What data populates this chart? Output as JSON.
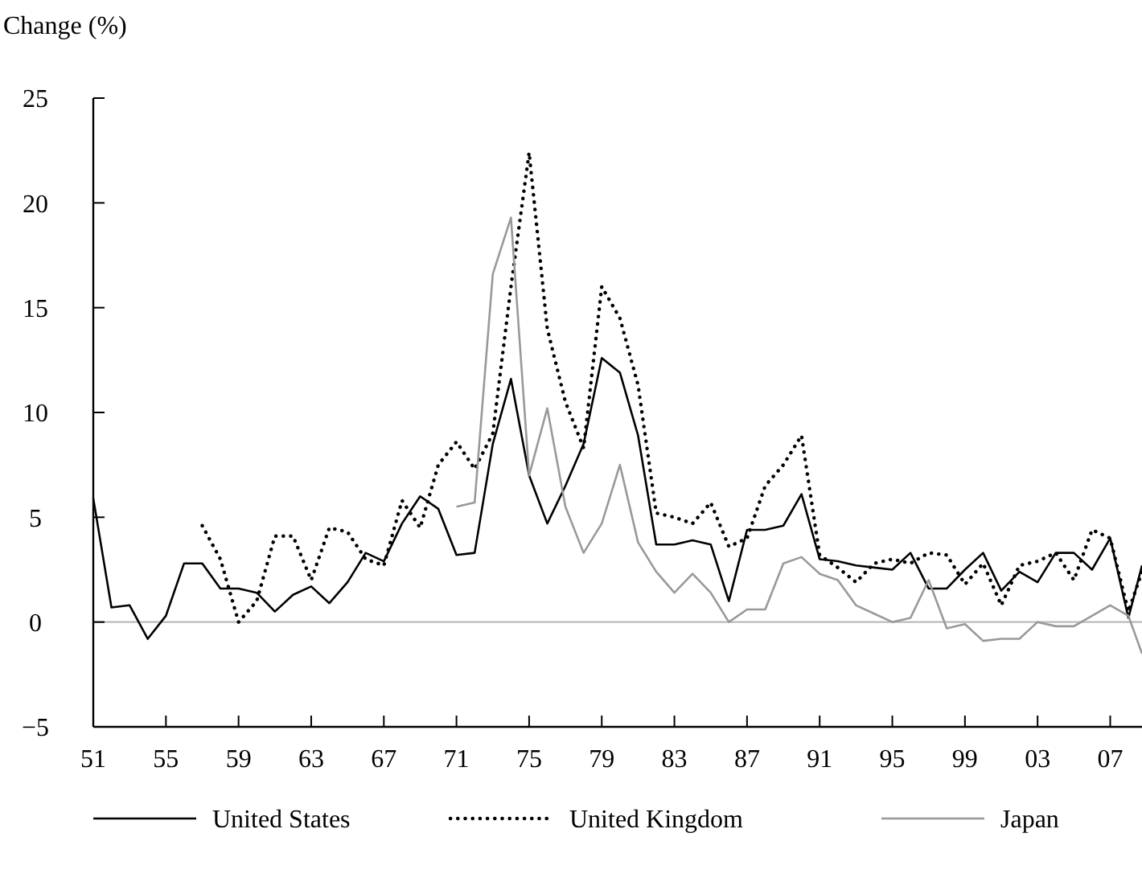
{
  "chart_data": {
    "type": "line",
    "ylabel": "Change (%)",
    "x": [
      1951,
      1952,
      1953,
      1954,
      1955,
      1956,
      1957,
      1958,
      1959,
      1960,
      1961,
      1962,
      1963,
      1964,
      1965,
      1966,
      1967,
      1968,
      1969,
      1970,
      1971,
      1972,
      1973,
      1974,
      1975,
      1976,
      1977,
      1978,
      1979,
      1980,
      1981,
      1982,
      1983,
      1984,
      1985,
      1986,
      1987,
      1988,
      1989,
      1990,
      1991,
      1992,
      1993,
      1994,
      1995,
      1996,
      1997,
      1998,
      1999,
      2000,
      2001,
      2002,
      2003,
      2004,
      2005,
      2006,
      2007,
      2008,
      2008.75
    ],
    "series": [
      {
        "name": "United States",
        "color": "#000000",
        "line_style": "solid",
        "values": [
          5.9,
          0.7,
          0.8,
          -0.8,
          0.3,
          2.8,
          2.8,
          1.6,
          1.6,
          1.4,
          0.5,
          1.3,
          1.7,
          0.9,
          1.9,
          3.3,
          2.9,
          4.7,
          6.0,
          5.4,
          3.2,
          3.3,
          8.5,
          11.6,
          7.0,
          4.7,
          6.5,
          8.5,
          12.6,
          11.9,
          8.9,
          3.7,
          3.7,
          3.9,
          3.7,
          1.0,
          4.4,
          4.4,
          4.6,
          6.1,
          3.0,
          2.9,
          2.7,
          2.6,
          2.5,
          3.3,
          1.6,
          1.6,
          2.5,
          3.3,
          1.5,
          2.4,
          1.9,
          3.3,
          3.3,
          2.5,
          4.0,
          0.2,
          2.7
        ]
      },
      {
        "name": "United Kingdom",
        "color": "#000000",
        "line_style": "dotted",
        "values": [
          null,
          null,
          null,
          null,
          null,
          null,
          4.6,
          3.0,
          0.0,
          1.0,
          4.1,
          4.1,
          2.0,
          4.5,
          4.3,
          3.0,
          2.7,
          5.8,
          4.5,
          7.5,
          8.6,
          7.3,
          9.0,
          16.0,
          22.4,
          14.0,
          10.5,
          8.3,
          16.0,
          14.5,
          11.3,
          5.2,
          5.0,
          4.7,
          5.7,
          3.6,
          4.0,
          6.5,
          7.5,
          8.9,
          3.2,
          2.6,
          1.9,
          2.8,
          3.0,
          2.8,
          3.3,
          3.2,
          1.8,
          2.8,
          0.8,
          2.7,
          2.9,
          3.3,
          2.0,
          4.4,
          4.0,
          0.5,
          2.4
        ]
      },
      {
        "name": "Japan",
        "color": "#999999",
        "line_style": "solid",
        "values": [
          null,
          null,
          null,
          null,
          null,
          null,
          null,
          null,
          null,
          null,
          null,
          null,
          null,
          null,
          null,
          null,
          null,
          null,
          null,
          null,
          5.5,
          5.7,
          16.6,
          19.3,
          7.0,
          10.2,
          5.5,
          3.3,
          4.7,
          7.5,
          3.8,
          2.4,
          1.4,
          2.3,
          1.4,
          0.0,
          0.6,
          0.6,
          2.8,
          3.1,
          2.3,
          2.0,
          0.8,
          0.4,
          0.0,
          0.2,
          2.0,
          -0.3,
          -0.1,
          -0.9,
          -0.8,
          -0.8,
          0.0,
          -0.2,
          -0.2,
          0.3,
          0.8,
          0.3,
          -1.5
        ]
      }
    ],
    "xlim": [
      1951,
      2008.75
    ],
    "xticks": [
      {
        "value": 1951,
        "label": "51"
      },
      {
        "value": 1955,
        "label": "55"
      },
      {
        "value": 1959,
        "label": "59"
      },
      {
        "value": 1963,
        "label": "63"
      },
      {
        "value": 1967,
        "label": "67"
      },
      {
        "value": 1971,
        "label": "71"
      },
      {
        "value": 1975,
        "label": "75"
      },
      {
        "value": 1979,
        "label": "79"
      },
      {
        "value": 1983,
        "label": "83"
      },
      {
        "value": 1987,
        "label": "87"
      },
      {
        "value": 1991,
        "label": "91"
      },
      {
        "value": 1995,
        "label": "95"
      },
      {
        "value": 1999,
        "label": "99"
      },
      {
        "value": 2003,
        "label": "03"
      },
      {
        "value": 2007,
        "label": "07"
      }
    ],
    "ylim": [
      -5,
      25
    ],
    "yticks": [
      {
        "value": -5,
        "label": "−5"
      },
      0,
      5,
      10,
      15,
      20,
      25
    ],
    "ref_lines": [
      {
        "axis": "y",
        "value": 0,
        "color": "#bbbbbb"
      }
    ],
    "legend": "bottom",
    "grid": false
  }
}
